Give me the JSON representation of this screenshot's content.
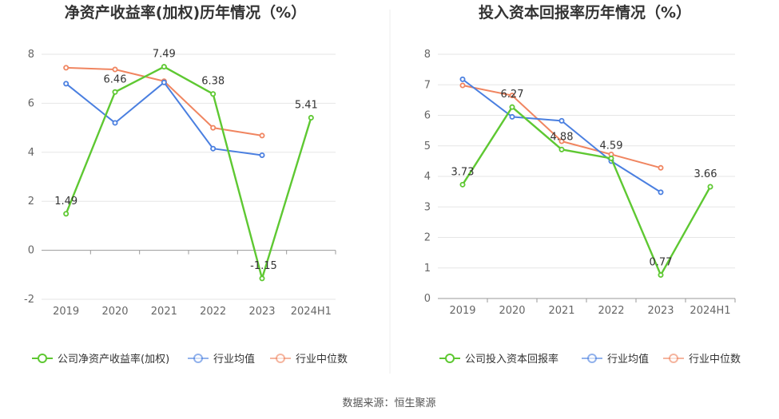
{
  "source_label": "数据来源：恒生聚源",
  "colors": {
    "company": "#5ec832",
    "avg": "#4a7fe0",
    "median": "#f08560"
  },
  "chart_data": [
    {
      "type": "line",
      "title": "净资产收益率(加权)历年情况（%）",
      "categories": [
        "2019",
        "2020",
        "2021",
        "2022",
        "2023",
        "2024H1"
      ],
      "ylim": [
        -2,
        8
      ],
      "yticks": [
        -2,
        0,
        2,
        4,
        6,
        8
      ],
      "series": [
        {
          "name": "公司净资产收益率(加权)",
          "key": "company",
          "values": [
            1.49,
            6.46,
            7.49,
            6.38,
            -1.15,
            5.41
          ],
          "labels": [
            "1.49",
            "6.46",
            "7.49",
            "6.38",
            "-1.15",
            "5.41"
          ]
        },
        {
          "name": "行业均值",
          "key": "avg",
          "values": [
            6.8,
            5.2,
            6.85,
            4.15,
            3.88,
            null
          ]
        },
        {
          "name": "行业中位数",
          "key": "median",
          "values": [
            7.45,
            7.38,
            6.9,
            5.0,
            4.68,
            null
          ]
        }
      ]
    },
    {
      "type": "line",
      "title": "投入资本回报率历年情况（%）",
      "categories": [
        "2019",
        "2020",
        "2021",
        "2022",
        "2023",
        "2024H1"
      ],
      "ylim": [
        0,
        8
      ],
      "yticks": [
        0,
        1,
        2,
        3,
        4,
        5,
        6,
        7,
        8
      ],
      "series": [
        {
          "name": "公司投入资本回报率",
          "key": "company",
          "values": [
            3.73,
            6.27,
            4.88,
            4.59,
            0.77,
            3.66
          ],
          "labels": [
            "3.73",
            "6.27",
            "4.88",
            "4.59",
            "0.77",
            "3.66"
          ]
        },
        {
          "name": "行业均值",
          "key": "avg",
          "values": [
            7.18,
            5.95,
            5.82,
            4.5,
            3.48,
            null
          ]
        },
        {
          "name": "行业中位数",
          "key": "median",
          "values": [
            6.98,
            6.65,
            5.15,
            4.72,
            4.28,
            null
          ]
        }
      ]
    }
  ]
}
